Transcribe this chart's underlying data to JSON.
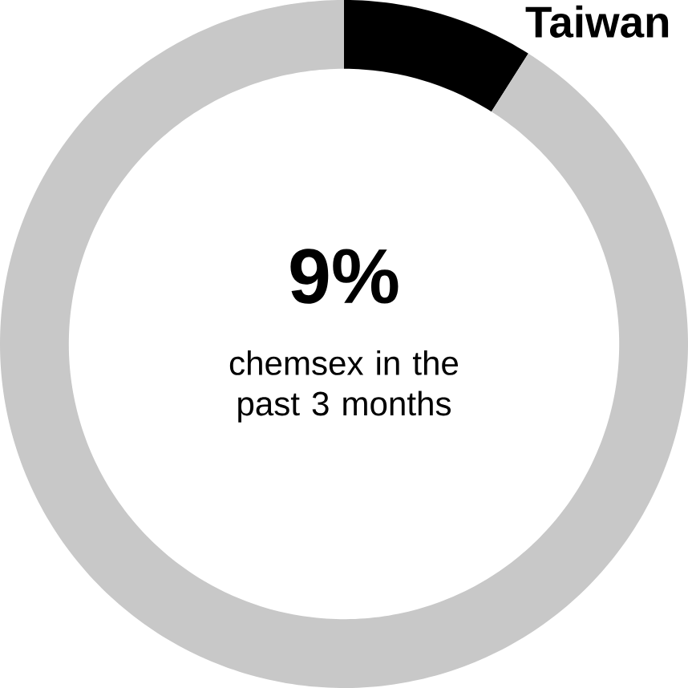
{
  "chart_data": {
    "type": "donut",
    "title": "Taiwan",
    "categories": [
      null,
      null
    ],
    "values": [
      9,
      91
    ],
    "colors": [
      "#000000",
      "#c8c8c8"
    ],
    "value_labels": [
      "9%",
      null
    ],
    "annotations": [
      "chemsex in the past 3 months"
    ]
  }
}
